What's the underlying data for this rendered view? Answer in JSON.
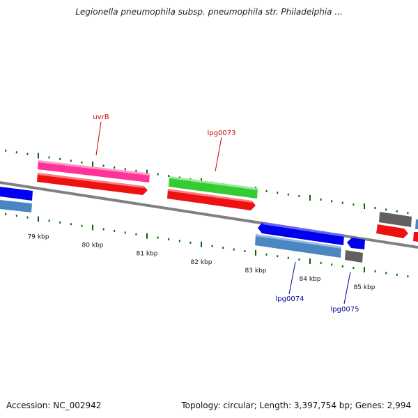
{
  "title": "Legionella pneumophila subsp. pneumophila str. Philadelphia ...",
  "footer": {
    "accession": "Accession: NC_002942",
    "stats": "Topology: circular; Length: 3,397,754 bp; Genes: 2,994"
  },
  "scale": {
    "ticks": [
      {
        "label": "79 kbp",
        "kbp": 79
      },
      {
        "label": "80 kbp",
        "kbp": 80
      },
      {
        "label": "81 kbp",
        "kbp": 81
      },
      {
        "label": "82 kbp",
        "kbp": 82
      },
      {
        "label": "83 kbp",
        "kbp": 83
      },
      {
        "label": "84 kbp",
        "kbp": 84
      },
      {
        "label": "85 kbp",
        "kbp": 85
      }
    ]
  },
  "gene_labels": [
    {
      "name": "uvrB",
      "color": "#cc0000"
    },
    {
      "name": "lpg0073",
      "color": "#cc0000"
    },
    {
      "name": "lpg0074",
      "color": "#000099"
    },
    {
      "name": "lpg0075",
      "color": "#000099"
    }
  ],
  "colors": {
    "backbone": "#808080",
    "tick": "#006600",
    "cds": "#ee1111",
    "gene_pink": "#ff3399",
    "gene_green": "#33cc33",
    "gene_blue": "#0000ee",
    "gene_steel": "#4a86c0",
    "gene_gray": "#606060"
  }
}
